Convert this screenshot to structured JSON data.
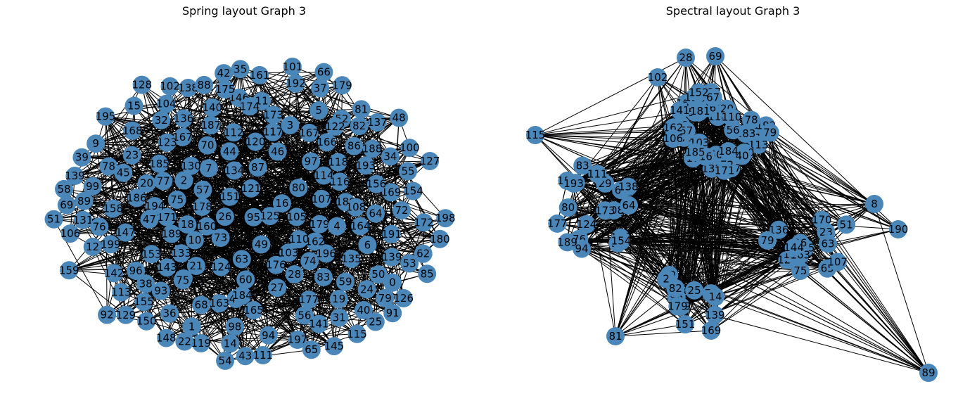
{
  "colors": {
    "node": "#4a86b8",
    "edge": "#000000",
    "label": "#000000"
  },
  "panels": [
    {
      "title": "Spring layout Graph 3",
      "nodes": [
        "111",
        "195",
        "62",
        "73",
        "85",
        "169",
        "199",
        "173",
        "106",
        "93",
        "0",
        "167",
        "145",
        "59",
        "18",
        "24",
        "87",
        "98",
        "90",
        "89",
        "124",
        "82",
        "92",
        "171",
        "43",
        "23",
        "177",
        "95",
        "138",
        "19",
        "35",
        "15",
        "158",
        "101",
        "148",
        "27",
        "55",
        "49",
        "119",
        "120",
        "153",
        "21",
        "97",
        "186",
        "81",
        "94",
        "57",
        "39",
        "159",
        "114",
        "66",
        "16",
        "180",
        "100",
        "32",
        "40",
        "135",
        "51",
        "56",
        "70",
        "189",
        "80",
        "2",
        "41",
        "172",
        "78",
        "11",
        "164",
        "178",
        "58",
        "198",
        "165",
        "116",
        "25",
        "83",
        "191",
        "141",
        "193",
        "26",
        "163",
        "65",
        "9",
        "188",
        "129",
        "5",
        "64",
        "179",
        "117",
        "142",
        "42",
        "47",
        "113",
        "46",
        "137",
        "147",
        "68",
        "154",
        "3",
        "96",
        "134",
        "45",
        "107",
        "184",
        "168",
        "133",
        "115",
        "131",
        "136",
        "146",
        "7",
        "44",
        "156",
        "79",
        "162",
        "160",
        "126",
        "151",
        "1",
        "88",
        "179",
        "10",
        "37",
        "127",
        "185",
        "128",
        "74",
        "34",
        "155",
        "77",
        "75",
        "86",
        "102",
        "63",
        "167",
        "112",
        "123",
        "197",
        "180",
        "103",
        "52",
        "196",
        "4",
        "6",
        "72",
        "20",
        "121",
        "139",
        "53",
        "187",
        "12",
        "139",
        "48",
        "99",
        "104",
        "54",
        "161",
        "31",
        "143",
        "175",
        "14",
        "150",
        "28",
        "60",
        "125",
        "36",
        "108",
        "140",
        "75",
        "192",
        "110",
        "194",
        "50",
        "76",
        "122",
        "166",
        "38",
        "91",
        "105",
        "176",
        "130",
        "118",
        "69",
        "174",
        "22"
      ]
    },
    {
      "title": "Spectral layout Graph 3",
      "nodes": [
        "28",
        "50",
        "127",
        "118",
        "20",
        "76",
        "122",
        "125",
        "96",
        "166",
        "69",
        "60",
        "17",
        "187",
        "132",
        "74",
        "171",
        "105",
        "155",
        "199",
        "102",
        "108",
        "51",
        "94",
        "65",
        "147",
        "113",
        "183",
        "29",
        "64",
        "115",
        "163",
        "61",
        "164",
        "50",
        "46",
        "96",
        "180",
        "26",
        "2",
        "81",
        "56",
        "141",
        "189",
        "138",
        "55",
        "124",
        "80",
        "94",
        "57",
        "89",
        "82",
        "67",
        "75",
        "110",
        "14",
        "192",
        "103",
        "140",
        "115",
        "190",
        "79",
        "107",
        "40",
        "184",
        "154",
        "144",
        "83",
        "151",
        "179",
        "8",
        "136",
        "181",
        "170",
        "162",
        "72",
        "25",
        "152",
        "78",
        "16",
        "169",
        "111",
        "193",
        "173",
        "23",
        "139",
        "63",
        "177",
        "185",
        "79",
        "106",
        "171",
        "51"
      ]
    }
  ]
}
